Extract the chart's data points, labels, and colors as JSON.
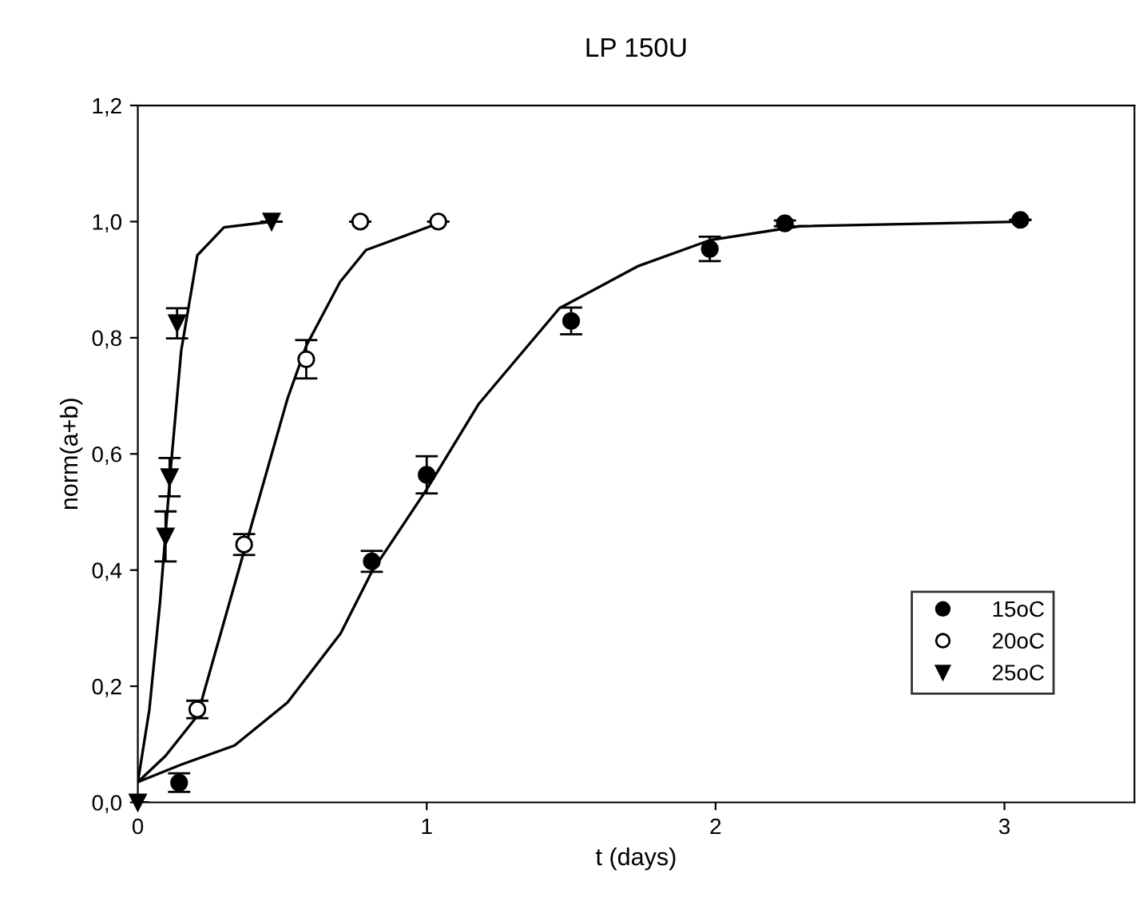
{
  "chart_data": {
    "type": "scatter",
    "title": "LP 150U",
    "xlabel": "t (days)",
    "ylabel": "norm(a+b)",
    "xlim": [
      0,
      3.45
    ],
    "xticks": [
      0,
      1,
      2,
      3
    ],
    "ylim": [
      0,
      1.2
    ],
    "yticks": [
      {
        "value": 0,
        "label": "0,0"
      },
      {
        "value": 0.2,
        "label": "0,2"
      },
      {
        "value": 0.4,
        "label": "0,4"
      },
      {
        "value": 0.6,
        "label": "0,6"
      },
      {
        "value": 0.8,
        "label": "0,8"
      },
      {
        "value": 1.0,
        "label": "1,0"
      },
      {
        "value": 1.2,
        "label": "1,2"
      }
    ],
    "grid": false,
    "legend": "lower right",
    "series": [
      {
        "name": "15oC",
        "marker": "circle",
        "color": "#000000",
        "x": [
          0.143,
          0.81,
          1.0,
          1.5,
          1.98,
          2.24,
          3.055
        ],
        "values": [
          0.034,
          0.415,
          0.564,
          0.829,
          0.953,
          0.997,
          1.003
        ],
        "errors": [
          0.016,
          0.018,
          0.032,
          0.023,
          0.021,
          0.005,
          null
        ]
      },
      {
        "name": "20oC",
        "marker": "circle",
        "color": "#ffffff",
        "x": [
          0.206,
          0.368,
          0.583,
          0.77,
          1.04
        ],
        "values": [
          0.16,
          0.444,
          0.763,
          1.0,
          1.0
        ],
        "errors": [
          0.015,
          0.018,
          0.033,
          null,
          null
        ]
      },
      {
        "name": "25oC",
        "marker": "triangle",
        "color": "#000000",
        "x": [
          0,
          0.096,
          0.11,
          0.136,
          0.463
        ],
        "values": [
          0,
          0.458,
          0.56,
          0.825,
          1.0
        ],
        "errors": [
          null,
          0.043,
          0.033,
          0.026,
          null
        ]
      },
      {
        "type": "line",
        "marker": "none",
        "line_style": "solid",
        "color": "#000000",
        "x": [
          0,
          0.15,
          0.335,
          0.518,
          0.702,
          0.81,
          1.0,
          1.18,
          1.46,
          1.73,
          1.98,
          2.29,
          3.055
        ],
        "values": [
          0.035,
          0.065,
          0.098,
          0.172,
          0.291,
          0.397,
          0.539,
          0.686,
          0.851,
          0.923,
          0.968,
          0.992,
          1.0
        ]
      },
      {
        "type": "line",
        "marker": "none",
        "line_style": "solid",
        "color": "#000000",
        "x": [
          0,
          0.096,
          0.206,
          0.368,
          0.518,
          0.583,
          0.7,
          0.79,
          1.04
        ],
        "values": [
          0.035,
          0.08,
          0.149,
          0.433,
          0.695,
          0.786,
          0.896,
          0.951,
          0.997
        ]
      },
      {
        "type": "line",
        "marker": "none",
        "line_style": "solid",
        "color": "#000000",
        "x": [
          0,
          0.04,
          0.077,
          0.114,
          0.15,
          0.206,
          0.298,
          0.463
        ],
        "values": [
          0.035,
          0.16,
          0.345,
          0.575,
          0.777,
          0.942,
          0.99,
          1.0
        ]
      }
    ]
  }
}
